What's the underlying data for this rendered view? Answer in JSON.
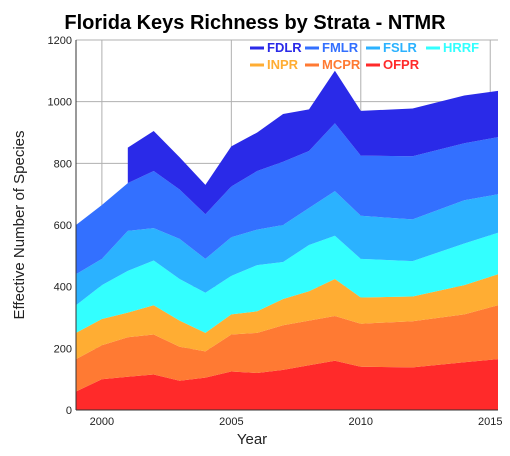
{
  "chart_data": {
    "type": "area",
    "stacked": true,
    "title": "Florida Keys Richness by Strata - NTMR",
    "xlabel": "Year",
    "ylabel": "Effective Number of Species",
    "xlim": [
      1999,
      2015.3
    ],
    "ylim": [
      0,
      1200
    ],
    "x_ticks": [
      2000,
      2005,
      2010,
      2015
    ],
    "y_ticks": [
      0,
      200,
      400,
      600,
      800,
      1000,
      1200
    ],
    "grid": true,
    "legend_position": "top-right",
    "series": [
      {
        "name": "OFPR",
        "color": "#ff2a2a",
        "x": [
          1999,
          2000,
          2001,
          2002,
          2003,
          2004,
          2005,
          2006,
          2007,
          2008,
          2009,
          2010,
          2012,
          2014,
          2015.3
        ],
        "values": [
          60,
          100,
          108,
          115,
          95,
          105,
          125,
          120,
          130,
          145,
          160,
          140,
          138,
          155,
          165
        ]
      },
      {
        "name": "MCPR",
        "color": "#ff7a33",
        "x": [
          1999,
          2000,
          2001,
          2002,
          2003,
          2004,
          2005,
          2006,
          2007,
          2008,
          2009,
          2010,
          2012,
          2014,
          2015.3
        ],
        "values": [
          105,
          110,
          128,
          130,
          110,
          85,
          120,
          130,
          145,
          145,
          145,
          140,
          150,
          155,
          175
        ]
      },
      {
        "name": "INPR",
        "color": "#ffad33",
        "x": [
          1999,
          2000,
          2001,
          2002,
          2003,
          2004,
          2005,
          2006,
          2007,
          2008,
          2009,
          2010,
          2012,
          2014,
          2015.3
        ],
        "values": [
          85,
          85,
          80,
          95,
          85,
          60,
          65,
          70,
          85,
          95,
          120,
          85,
          80,
          95,
          100
        ]
      },
      {
        "name": "HRRF",
        "color": "#33ffff",
        "x": [
          1999,
          2000,
          2001,
          2002,
          2003,
          2004,
          2005,
          2006,
          2007,
          2008,
          2009,
          2010,
          2012,
          2014,
          2015.3
        ],
        "values": [
          90,
          110,
          135,
          145,
          135,
          130,
          125,
          150,
          120,
          150,
          140,
          125,
          115,
          135,
          135
        ]
      },
      {
        "name": "FSLR",
        "color": "#2bb2ff",
        "x": [
          1999,
          2000,
          2001,
          2002,
          2003,
          2004,
          2005,
          2006,
          2007,
          2008,
          2009,
          2010,
          2012,
          2014,
          2015.3
        ],
        "values": [
          100,
          85,
          130,
          105,
          130,
          110,
          125,
          115,
          120,
          120,
          145,
          140,
          135,
          140,
          125
        ]
      },
      {
        "name": "FMLR",
        "color": "#3370ff",
        "x": [
          1999,
          2000,
          2001,
          2002,
          2003,
          2004,
          2005,
          2006,
          2007,
          2008,
          2009,
          2010,
          2012,
          2014,
          2015.3
        ],
        "values": [
          160,
          175,
          155,
          185,
          160,
          145,
          165,
          190,
          205,
          185,
          220,
          195,
          205,
          185,
          185
        ]
      },
      {
        "name": "FDLR",
        "color": "#2a2ae8",
        "x": [
          2001,
          2002,
          2003,
          2004,
          2005,
          2006,
          2007,
          2008,
          2009,
          2010,
          2012,
          2014,
          2015.3
        ],
        "values": [
          115,
          130,
          105,
          95,
          130,
          125,
          155,
          135,
          170,
          145,
          155,
          155,
          150
        ]
      }
    ],
    "legend_order": [
      "FDLR",
      "FMLR",
      "FSLR",
      "HRRF",
      "INPR",
      "MCPR",
      "OFPR"
    ]
  }
}
